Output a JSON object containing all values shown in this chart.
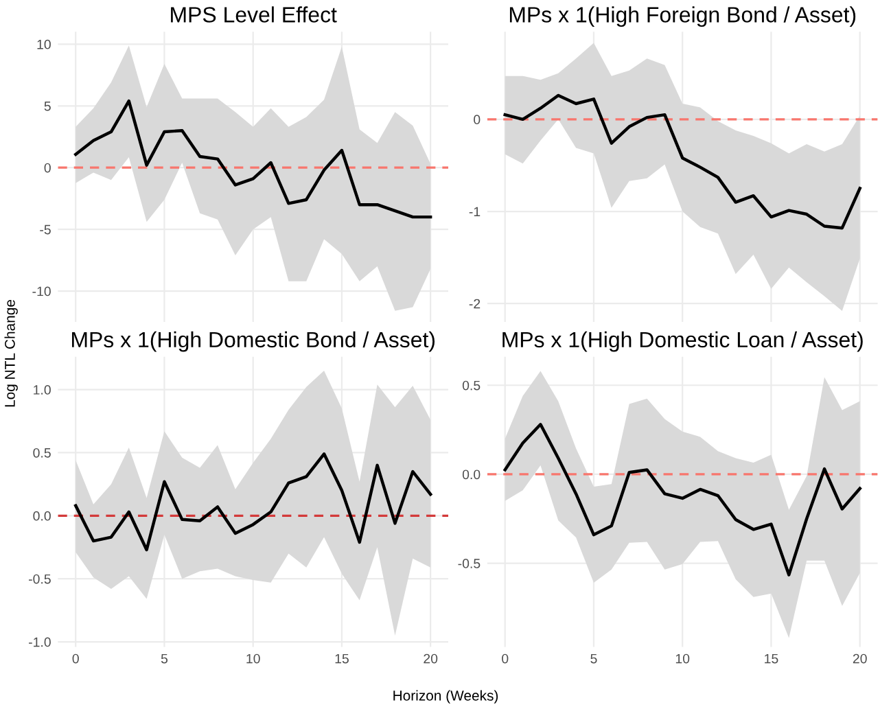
{
  "chart_data": [
    {
      "type": "line",
      "title": "MPS Level Effect",
      "ylabel": "Log NTL Change",
      "x": [
        0,
        1,
        2,
        3,
        4,
        5,
        6,
        7,
        8,
        9,
        10,
        11,
        12,
        13,
        14,
        15,
        16,
        17,
        18,
        19,
        20
      ],
      "series": [
        {
          "color": "#000000",
          "values": [
            1.07,
            2.2,
            2.9,
            5.4,
            0.2,
            2.9,
            3.0,
            0.9,
            0.7,
            -1.4,
            -0.9,
            0.4,
            -2.9,
            -2.6,
            -0.2,
            1.4,
            -3.0,
            -3.0,
            -3.5,
            -4.0,
            -4.0
          ],
          "upper": [
            3.3,
            4.8,
            6.9,
            9.9,
            4.9,
            8.4,
            5.6,
            5.6,
            5.6,
            4.5,
            3.3,
            4.8,
            3.3,
            4.1,
            5.5,
            9.8,
            3.1,
            2.0,
            4.5,
            3.4,
            0.3
          ],
          "lower": [
            -1.25,
            -0.4,
            -1.0,
            0.85,
            -4.4,
            -2.6,
            0.4,
            -3.7,
            -4.2,
            -7.1,
            -5.0,
            -4.0,
            -9.2,
            -9.2,
            -5.8,
            -7.0,
            -9.2,
            -8.0,
            -11.6,
            -11.3,
            -8.2
          ]
        }
      ],
      "xlim": [
        -1,
        21
      ],
      "xticks": [
        0,
        5,
        10,
        15,
        20
      ],
      "ylim": [
        -12.5,
        11
      ],
      "yticks": [
        -10,
        -5,
        0,
        5,
        10
      ],
      "ref_lines": [
        {
          "axis": "y",
          "value": 0,
          "color": "#f8766d",
          "line_style": "dashed"
        }
      ],
      "grid": true,
      "tick_labels": "y"
    },
    {
      "type": "line",
      "title": "MPs x 1(High Foreign Bond / Asset)",
      "x": [
        0,
        1,
        2,
        3,
        4,
        5,
        6,
        7,
        8,
        9,
        10,
        11,
        12,
        13,
        14,
        15,
        16,
        17,
        18,
        19,
        20
      ],
      "series": [
        {
          "color": "#000000",
          "values": [
            0.05,
            0,
            0.12,
            0.26,
            0.17,
            0.22,
            -0.26,
            -0.08,
            0.02,
            0.05,
            -0.42,
            -0.52,
            -0.63,
            -0.9,
            -0.83,
            -1.06,
            -0.99,
            -1.03,
            -1.16,
            -1.18,
            -0.75
          ],
          "upper": [
            0.47,
            0.47,
            0.43,
            0.5,
            0.66,
            0.83,
            0.47,
            0.53,
            0.66,
            0.59,
            0.17,
            0.13,
            -0.02,
            -0.12,
            -0.18,
            -0.26,
            -0.37,
            -0.27,
            -0.35,
            -0.27,
            0.04
          ],
          "lower": [
            -0.38,
            -0.48,
            -0.23,
            0.0,
            -0.31,
            -0.37,
            -0.96,
            -0.67,
            -0.64,
            -0.49,
            -1.0,
            -1.17,
            -1.24,
            -1.68,
            -1.47,
            -1.84,
            -1.61,
            -1.77,
            -1.92,
            -2.08,
            -1.51
          ]
        }
      ],
      "xlim": [
        -1,
        21
      ],
      "xticks": [
        0,
        5,
        10,
        15,
        20
      ],
      "ylim": [
        -2.2,
        0.95
      ],
      "yticks": [
        -2,
        -1,
        0
      ],
      "ref_lines": [
        {
          "axis": "y",
          "value": 0,
          "color": "#f8766d",
          "line_style": "dashed"
        }
      ],
      "grid": true,
      "tick_labels": "y"
    },
    {
      "type": "line",
      "title": "MPs x 1(High Domestic Bond / Asset)",
      "xlabel": "Horizon (Weeks)",
      "x": [
        0,
        1,
        2,
        3,
        4,
        5,
        6,
        7,
        8,
        9,
        10,
        11,
        12,
        13,
        14,
        15,
        16,
        17,
        18,
        19,
        20
      ],
      "series": [
        {
          "color": "#000000",
          "values": [
            0.08,
            -0.2,
            -0.17,
            0.03,
            -0.27,
            0.27,
            -0.03,
            -0.04,
            0.07,
            -0.14,
            -0.07,
            0.03,
            0.26,
            0.31,
            0.49,
            0.2,
            -0.21,
            0.4,
            -0.06,
            0.35,
            0.17
          ],
          "upper": [
            0.44,
            0.09,
            0.25,
            0.54,
            0.14,
            0.67,
            0.46,
            0.38,
            0.56,
            0.21,
            0.42,
            0.61,
            0.84,
            1.02,
            1.15,
            0.85,
            0.27,
            1.04,
            0.86,
            1.03,
            0.76
          ],
          "lower": [
            -0.29,
            -0.49,
            -0.58,
            -0.48,
            -0.66,
            -0.15,
            -0.5,
            -0.44,
            -0.42,
            -0.48,
            -0.51,
            -0.53,
            -0.3,
            -0.41,
            -0.17,
            -0.46,
            -0.67,
            -0.25,
            -0.95,
            -0.34,
            -0.41
          ]
        }
      ],
      "xlim": [
        -1,
        21
      ],
      "xticks": [
        0,
        5,
        10,
        15,
        20
      ],
      "ylim": [
        -1.04,
        1.26
      ],
      "yticks": [
        {
          "value": -1,
          "label": "-1.0"
        },
        {
          "value": -0.5,
          "label": "-0.5"
        },
        {
          "value": 0,
          "label": "0.0"
        },
        {
          "value": 0.5,
          "label": "0.5"
        },
        {
          "value": 1,
          "label": "1.0"
        }
      ],
      "ref_lines": [
        {
          "axis": "y",
          "value": 0,
          "color": "#d33a3a",
          "line_style": "dashed"
        }
      ],
      "grid": true
    },
    {
      "type": "line",
      "title": "MPs x 1(High Domestic Loan / Asset)",
      "x": [
        0,
        1,
        2,
        3,
        4,
        5,
        6,
        7,
        8,
        9,
        10,
        11,
        12,
        13,
        14,
        15,
        16,
        17,
        18,
        19,
        20
      ],
      "series": [
        {
          "color": "#000000",
          "values": [
            0.025,
            0.175,
            0.28,
            0.09,
            -0.11,
            -0.34,
            -0.29,
            0.01,
            0.025,
            -0.11,
            -0.135,
            -0.085,
            -0.12,
            -0.255,
            -0.31,
            -0.28,
            -0.565,
            -0.25,
            0.03,
            -0.195,
            -0.08
          ],
          "upper": [
            0.2,
            0.44,
            0.58,
            0.41,
            0.145,
            -0.07,
            -0.055,
            0.395,
            0.425,
            0.31,
            0.24,
            0.21,
            0.13,
            0.09,
            0.065,
            0.11,
            -0.2,
            -0.01,
            0.545,
            0.36,
            0.41
          ],
          "lower": [
            -0.15,
            -0.09,
            0.05,
            -0.26,
            -0.355,
            -0.61,
            -0.535,
            -0.385,
            -0.38,
            -0.535,
            -0.505,
            -0.38,
            -0.375,
            -0.59,
            -0.69,
            -0.67,
            -0.92,
            -0.485,
            -0.485,
            -0.74,
            -0.555
          ]
        }
      ],
      "xlim": [
        -1,
        21
      ],
      "xticks": [
        0,
        5,
        10,
        15,
        20
      ],
      "ylim": [
        -0.97,
        0.66
      ],
      "yticks": [
        {
          "value": -0.5,
          "label": "-0.5"
        },
        {
          "value": 0,
          "label": "0.0"
        },
        {
          "value": 0.5,
          "label": "0.5"
        }
      ],
      "ref_lines": [
        {
          "axis": "y",
          "value": 0,
          "color": "#f8766d",
          "line_style": "dashed"
        }
      ],
      "grid": true
    }
  ]
}
